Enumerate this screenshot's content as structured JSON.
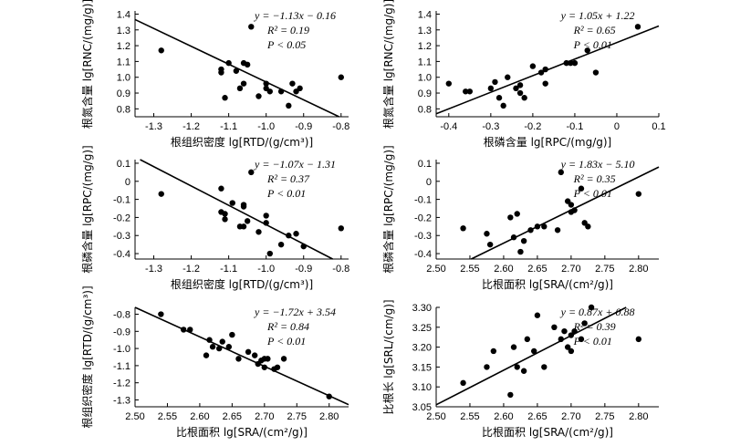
{
  "chart_data": [
    {
      "type": "scatter",
      "xlabel": "根组织密度 lg[RTD/(g/cm³)]",
      "ylabel": "根氮含量 lg[RNC/(mg/g)]",
      "xlim": [
        -1.35,
        -0.78
      ],
      "ylim": [
        0.75,
        1.42
      ],
      "xticks": [
        "-1.3",
        "-1.2",
        "-1.1",
        "-1.0",
        "-0.9",
        "-0.8"
      ],
      "yticks": [
        "1.4",
        "1.3",
        "1.2",
        "1.1",
        "1.0",
        "0.9",
        "0.8"
      ],
      "equation": "y = −1.13x − 0.16",
      "r2": "R² = 0.19",
      "p": "P < 0.05",
      "fit": {
        "slope": -1.13,
        "intercept": -0.16
      },
      "points": [
        [
          -1.28,
          1.17
        ],
        [
          -1.12,
          1.05
        ],
        [
          -1.12,
          1.03
        ],
        [
          -1.11,
          0.87
        ],
        [
          -1.1,
          1.09
        ],
        [
          -1.08,
          1.04
        ],
        [
          -1.07,
          0.93
        ],
        [
          -1.06,
          1.09
        ],
        [
          -1.06,
          0.96
        ],
        [
          -1.05,
          1.08
        ],
        [
          -1.04,
          1.32
        ],
        [
          -1.02,
          0.88
        ],
        [
          -1.0,
          0.96
        ],
        [
          -1.0,
          0.93
        ],
        [
          -0.99,
          0.91
        ],
        [
          -0.96,
          0.91
        ],
        [
          -0.93,
          0.96
        ],
        [
          -0.92,
          0.91
        ],
        [
          -0.91,
          0.93
        ],
        [
          -0.94,
          0.82
        ],
        [
          -0.8,
          1.0
        ]
      ]
    },
    {
      "type": "scatter",
      "xlabel": "根磷含量 lg[RPC/(mg/g)]",
      "ylabel": "根氮含量 lg[RNC/(mg/g)]",
      "xlim": [
        -0.43,
        0.1
      ],
      "ylim": [
        0.75,
        1.42
      ],
      "xticks": [
        "-0.4",
        "-0.3",
        "-0.2",
        "-0.1",
        "0",
        "0.1"
      ],
      "yticks": [
        "1.4",
        "1.3",
        "1.2",
        "1.1",
        "1.0",
        "0.9",
        "0.8"
      ],
      "equation": "y = 1.05x + 1.22",
      "r2": "R² = 0.65",
      "p": "P < 0.01",
      "fit": {
        "slope": 1.05,
        "intercept": 1.22
      },
      "points": [
        [
          -0.4,
          0.96
        ],
        [
          -0.36,
          0.91
        ],
        [
          -0.35,
          0.91
        ],
        [
          -0.3,
          0.93
        ],
        [
          -0.29,
          0.97
        ],
        [
          -0.28,
          0.87
        ],
        [
          -0.27,
          0.82
        ],
        [
          -0.26,
          1.0
        ],
        [
          -0.24,
          0.93
        ],
        [
          -0.23,
          0.95
        ],
        [
          -0.23,
          0.9
        ],
        [
          -0.22,
          0.87
        ],
        [
          -0.2,
          1.07
        ],
        [
          -0.18,
          1.03
        ],
        [
          -0.17,
          1.05
        ],
        [
          -0.17,
          0.96
        ],
        [
          -0.12,
          1.09
        ],
        [
          -0.11,
          1.09
        ],
        [
          -0.1,
          1.09
        ],
        [
          -0.07,
          1.17
        ],
        [
          -0.05,
          1.03
        ],
        [
          0.05,
          1.32
        ]
      ]
    },
    {
      "type": "scatter",
      "xlabel": "根组织密度 lg[RTD/(g/cm³)]",
      "ylabel": "根磷含量 lg[RPC/(mg/g)]",
      "xlim": [
        -1.35,
        -0.78
      ],
      "ylim": [
        -0.43,
        0.12
      ],
      "xticks": [
        "-1.3",
        "-1.2",
        "-1.1",
        "-1.0",
        "-0.9",
        "-0.8"
      ],
      "yticks": [
        "0.1",
        "0",
        "-0.1",
        "-0.2",
        "-0.3",
        "-0.4"
      ],
      "equation": "y = −1.07x − 1.31",
      "r2": "R² = 0.37",
      "p": "P < 0.01",
      "fit": {
        "slope": -1.07,
        "intercept": -1.31
      },
      "points": [
        [
          -1.28,
          -0.07
        ],
        [
          -1.12,
          -0.04
        ],
        [
          -1.12,
          -0.17
        ],
        [
          -1.11,
          -0.21
        ],
        [
          -1.11,
          -0.18
        ],
        [
          -1.09,
          -0.12
        ],
        [
          -1.07,
          -0.25
        ],
        [
          -1.06,
          -0.13
        ],
        [
          -1.06,
          -0.14
        ],
        [
          -1.06,
          -0.25
        ],
        [
          -1.05,
          -0.22
        ],
        [
          -1.04,
          0.05
        ],
        [
          -1.02,
          -0.28
        ],
        [
          -1.0,
          -0.19
        ],
        [
          -1.0,
          -0.23
        ],
        [
          -0.99,
          -0.4
        ],
        [
          -0.96,
          -0.35
        ],
        [
          -0.94,
          -0.3
        ],
        [
          -0.92,
          -0.29
        ],
        [
          -0.9,
          -0.36
        ],
        [
          -0.8,
          -0.26
        ]
      ]
    },
    {
      "type": "scatter",
      "xlabel": "比根面积 lg[SRA/(cm²/g)]",
      "ylabel": "根磷含量 lg[RPC/(mg/g)]",
      "xlim": [
        2.5,
        2.83
      ],
      "ylim": [
        -0.43,
        0.12
      ],
      "xticks": [
        "2.50",
        "2.55",
        "2.60",
        "2.65",
        "2.70",
        "2.75",
        "2.80"
      ],
      "yticks": [
        "0.1",
        "0",
        "-0.1",
        "-0.2",
        "-0.3",
        "-0.4"
      ],
      "equation": "y = 1.83x − 5.10",
      "r2": "R² = 0.35",
      "p": "P < 0.01",
      "fit": {
        "slope": 1.83,
        "intercept": -5.1
      },
      "points": [
        [
          2.54,
          -0.26
        ],
        [
          2.575,
          -0.29
        ],
        [
          2.58,
          -0.35
        ],
        [
          2.61,
          -0.2
        ],
        [
          2.615,
          -0.31
        ],
        [
          2.62,
          -0.18
        ],
        [
          2.625,
          -0.39
        ],
        [
          2.63,
          -0.33
        ],
        [
          2.64,
          -0.27
        ],
        [
          2.65,
          -0.25
        ],
        [
          2.66,
          -0.25
        ],
        [
          2.68,
          -0.27
        ],
        [
          2.685,
          0.05
        ],
        [
          2.695,
          -0.11
        ],
        [
          2.7,
          -0.13
        ],
        [
          2.7,
          -0.17
        ],
        [
          2.705,
          -0.16
        ],
        [
          2.715,
          -0.04
        ],
        [
          2.72,
          -0.23
        ],
        [
          2.725,
          -0.25
        ],
        [
          2.8,
          -0.07
        ]
      ]
    },
    {
      "type": "scatter",
      "xlabel": "比根面积 lg[SRA/(cm²/g)]",
      "ylabel": "根组织密度 lg[RTD/(g/cm³)]",
      "xlim": [
        2.5,
        2.83
      ],
      "ylim": [
        -1.34,
        -0.76
      ],
      "xticks": [
        "2.50",
        "2.55",
        "2.60",
        "2.65",
        "2.70",
        "2.75",
        "2.80"
      ],
      "yticks": [
        "-0.8",
        "-0.9",
        "-1.0",
        "-1.1",
        "-1.2",
        "-1.3"
      ],
      "equation": "y = −1.72x + 3.54",
      "r2": "R² = 0.84",
      "p": "P < 0.01",
      "fit": {
        "slope": -1.72,
        "intercept": 3.54
      },
      "points": [
        [
          2.54,
          -0.8
        ],
        [
          2.575,
          -0.89
        ],
        [
          2.585,
          -0.89
        ],
        [
          2.61,
          -1.04
        ],
        [
          2.615,
          -0.95
        ],
        [
          2.62,
          -0.99
        ],
        [
          2.63,
          -1.0
        ],
        [
          2.635,
          -0.96
        ],
        [
          2.645,
          -0.99
        ],
        [
          2.65,
          -0.92
        ],
        [
          2.66,
          -1.06
        ],
        [
          2.675,
          -1.02
        ],
        [
          2.685,
          -1.04
        ],
        [
          2.69,
          -1.09
        ],
        [
          2.695,
          -1.07
        ],
        [
          2.7,
          -1.11
        ],
        [
          2.7,
          -1.06
        ],
        [
          2.705,
          -1.06
        ],
        [
          2.715,
          -1.12
        ],
        [
          2.72,
          -1.11
        ],
        [
          2.73,
          -1.06
        ],
        [
          2.8,
          -1.28
        ]
      ]
    },
    {
      "type": "scatter",
      "xlabel": "比根面积 lg[SRA/(cm²/g)]",
      "ylabel": "比根长 lg[SRL/(cm/g)]",
      "xlim": [
        2.5,
        2.83
      ],
      "ylim": [
        3.05,
        3.3
      ],
      "xticks": [
        "2.50",
        "2.55",
        "2.60",
        "2.65",
        "2.70",
        "2.75",
        "2.80"
      ],
      "yticks": [
        "3.30",
        "3.25",
        "3.20",
        "3.15",
        "3.10",
        "3.05"
      ],
      "equation": "y = 0.87x + 0.88",
      "r2": "R² = 0.39",
      "p": "P < 0.01",
      "fit": {
        "slope": 0.87,
        "intercept": 0.88
      },
      "points": [
        [
          2.54,
          3.11
        ],
        [
          2.575,
          3.15
        ],
        [
          2.585,
          3.19
        ],
        [
          2.61,
          3.08
        ],
        [
          2.615,
          3.2
        ],
        [
          2.62,
          3.15
        ],
        [
          2.63,
          3.14
        ],
        [
          2.635,
          3.22
        ],
        [
          2.645,
          3.19
        ],
        [
          2.65,
          3.28
        ],
        [
          2.66,
          3.15
        ],
        [
          2.675,
          3.25
        ],
        [
          2.685,
          3.22
        ],
        [
          2.69,
          3.24
        ],
        [
          2.695,
          3.2
        ],
        [
          2.7,
          3.19
        ],
        [
          2.7,
          3.23
        ],
        [
          2.705,
          3.24
        ],
        [
          2.715,
          3.22
        ],
        [
          2.72,
          3.26
        ],
        [
          2.73,
          3.3
        ],
        [
          2.8,
          3.22
        ]
      ]
    }
  ]
}
